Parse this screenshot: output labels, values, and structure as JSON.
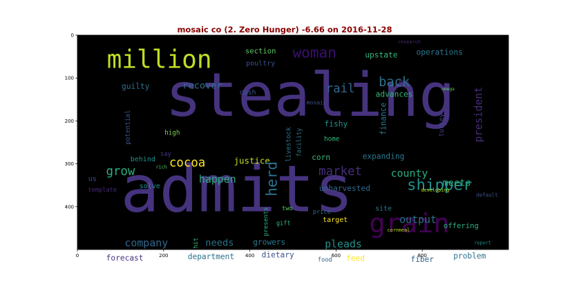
{
  "chart_data": {
    "type": "wordcloud",
    "title": "mosaic co (2. Zero Hunger) -6.66 on 2016-11-28",
    "title_color": "#8b0000",
    "background": "#000000",
    "xlim": [
      0,
      1000
    ],
    "ylim": [
      500,
      0
    ],
    "x_ticks": [
      0,
      200,
      400,
      600,
      800
    ],
    "y_ticks": [
      0,
      100,
      200,
      300,
      400
    ],
    "words": [
      {
        "text": "stealing",
        "x": 540,
        "y": 140,
        "size": 140,
        "color": "#46337e"
      },
      {
        "text": "admits",
        "x": 370,
        "y": 360,
        "size": 150,
        "color": "#46337e"
      },
      {
        "text": "million",
        "x": 190,
        "y": 57,
        "size": 58,
        "color": "#bddf26"
      },
      {
        "text": "grain",
        "x": 770,
        "y": 440,
        "size": 62,
        "color": "#440154"
      },
      {
        "text": "woman",
        "x": 550,
        "y": 40,
        "size": 34,
        "color": "#3b0f70"
      },
      {
        "text": "shipper",
        "x": 840,
        "y": 350,
        "size": 36,
        "color": "#21918c"
      },
      {
        "text": "back",
        "x": 735,
        "y": 110,
        "size": 30,
        "color": "#2c728e"
      },
      {
        "text": "president",
        "x": 930,
        "y": 185,
        "size": 24,
        "color": "#472c7a"
      },
      {
        "text": "rail",
        "x": 610,
        "y": 125,
        "size": 28,
        "color": "#31688e"
      },
      {
        "text": "upstate",
        "x": 705,
        "y": 47,
        "size": 18,
        "color": "#35b779"
      },
      {
        "text": "operations",
        "x": 840,
        "y": 40,
        "size": 18,
        "color": "#2a788e"
      },
      {
        "text": "section",
        "x": 425,
        "y": 38,
        "size": 17,
        "color": "#5ec962"
      },
      {
        "text": "poultry",
        "x": 425,
        "y": 67,
        "size": 16,
        "color": "#3b528b"
      },
      {
        "text": "recover",
        "x": 290,
        "y": 118,
        "size": 22,
        "color": "#2c728e"
      },
      {
        "text": "guilty",
        "x": 135,
        "y": 120,
        "size": 18,
        "color": "#2c728e"
      },
      {
        "text": "cash",
        "x": 395,
        "y": 134,
        "size": 16,
        "color": "#3b528b"
      },
      {
        "text": "mosaic",
        "x": 555,
        "y": 157,
        "size": 13,
        "color": "#3b528b"
      },
      {
        "text": "mos",
        "x": 758,
        "y": 107,
        "size": 13,
        "color": "#443a83"
      },
      {
        "text": "research",
        "x": 770,
        "y": 16,
        "size": 11,
        "color": "#482878"
      },
      {
        "text": "advances",
        "x": 735,
        "y": 138,
        "size": 18,
        "color": "#35b779"
      },
      {
        "text": "omega",
        "x": 860,
        "y": 126,
        "size": 10,
        "color": "#5ec962"
      },
      {
        "text": "finance",
        "x": 710,
        "y": 195,
        "size": 18,
        "color": "#2a788e"
      },
      {
        "text": "fishy",
        "x": 600,
        "y": 207,
        "size": 18,
        "color": "#21918c"
      },
      {
        "text": "turkey",
        "x": 845,
        "y": 210,
        "size": 15,
        "color": "#414487"
      },
      {
        "text": "potential",
        "x": 118,
        "y": 215,
        "size": 15,
        "color": "#3b528b"
      },
      {
        "text": "high",
        "x": 220,
        "y": 228,
        "size": 15,
        "color": "#7ad151"
      },
      {
        "text": "home",
        "x": 590,
        "y": 243,
        "size": 15,
        "color": "#35b779"
      },
      {
        "text": "livestock",
        "x": 490,
        "y": 255,
        "size": 15,
        "color": "#2c728e"
      },
      {
        "text": "facility",
        "x": 515,
        "y": 250,
        "size": 14,
        "color": "#2a788e"
      },
      {
        "text": "say",
        "x": 205,
        "y": 278,
        "size": 14,
        "color": "#443a83"
      },
      {
        "text": "behind",
        "x": 152,
        "y": 290,
        "size": 16,
        "color": "#21918c"
      },
      {
        "text": "rich",
        "x": 195,
        "y": 308,
        "size": 11,
        "color": "#5ec962"
      },
      {
        "text": "cocoa",
        "x": 255,
        "y": 298,
        "size": 28,
        "color": "#fde725"
      },
      {
        "text": "grow",
        "x": 100,
        "y": 318,
        "size": 28,
        "color": "#2ab07f"
      },
      {
        "text": "justice",
        "x": 405,
        "y": 293,
        "size": 20,
        "color": "#bddf26"
      },
      {
        "text": "corn",
        "x": 565,
        "y": 285,
        "size": 18,
        "color": "#35b779"
      },
      {
        "text": "expanding",
        "x": 710,
        "y": 283,
        "size": 18,
        "color": "#2a788e"
      },
      {
        "text": "market",
        "x": 610,
        "y": 318,
        "size": 28,
        "color": "#472c7a"
      },
      {
        "text": "herd",
        "x": 450,
        "y": 335,
        "size": 34,
        "color": "#2c728e"
      },
      {
        "text": "county",
        "x": 770,
        "y": 322,
        "size": 24,
        "color": "#2ab07f"
      },
      {
        "text": "happen",
        "x": 325,
        "y": 336,
        "size": 24,
        "color": "#2ab07f"
      },
      {
        "text": "meets",
        "x": 880,
        "y": 345,
        "size": 22,
        "color": "#2ab07f"
      },
      {
        "text": "us",
        "x": 35,
        "y": 336,
        "size": 16,
        "color": "#3b528b"
      },
      {
        "text": "solve",
        "x": 168,
        "y": 353,
        "size": 16,
        "color": "#21918c"
      },
      {
        "text": "template",
        "x": 58,
        "y": 362,
        "size": 14,
        "color": "#482878"
      },
      {
        "text": "unharvested",
        "x": 620,
        "y": 358,
        "size": 18,
        "color": "#31688e"
      },
      {
        "text": "developing",
        "x": 830,
        "y": 362,
        "size": 11,
        "color": "#b8de29"
      },
      {
        "text": "default",
        "x": 950,
        "y": 373,
        "size": 12,
        "color": "#3b528b"
      },
      {
        "text": "site",
        "x": 710,
        "y": 405,
        "size": 16,
        "color": "#2a788e"
      },
      {
        "text": "two",
        "x": 487,
        "y": 405,
        "size": 14,
        "color": "#5ec962"
      },
      {
        "text": "presents",
        "x": 438,
        "y": 435,
        "size": 14,
        "color": "#2ab07f"
      },
      {
        "text": "price",
        "x": 567,
        "y": 413,
        "size": 14,
        "color": "#31688e"
      },
      {
        "text": "output",
        "x": 790,
        "y": 430,
        "size": 24,
        "color": "#2c728e"
      },
      {
        "text": "target",
        "x": 598,
        "y": 432,
        "size": 16,
        "color": "#fde725"
      },
      {
        "text": "offering",
        "x": 890,
        "y": 445,
        "size": 17,
        "color": "#2ab07f"
      },
      {
        "text": "gift",
        "x": 478,
        "y": 440,
        "size": 14,
        "color": "#35b779"
      },
      {
        "text": "cornmeal",
        "x": 745,
        "y": 455,
        "size": 11,
        "color": "#bddf26"
      },
      {
        "text": "hit",
        "x": 276,
        "y": 485,
        "size": 14,
        "color": "#35b779"
      },
      {
        "text": "company",
        "x": 160,
        "y": 485,
        "size": 24,
        "color": "#31688e"
      },
      {
        "text": "needs",
        "x": 330,
        "y": 485,
        "size": 22,
        "color": "#2c728e"
      },
      {
        "text": "growers",
        "x": 445,
        "y": 483,
        "size": 18,
        "color": "#2a788e"
      },
      {
        "text": "pleads",
        "x": 617,
        "y": 487,
        "size": 24,
        "color": "#21918c"
      },
      {
        "text": "report",
        "x": 940,
        "y": 485,
        "size": 11,
        "color": "#21918c"
      },
      {
        "text": "forecast",
        "x": 110,
        "y": 520,
        "size": 18,
        "color": "#46337e"
      },
      {
        "text": "department",
        "x": 310,
        "y": 517,
        "size": 18,
        "color": "#2c728e"
      },
      {
        "text": "dietary",
        "x": 465,
        "y": 513,
        "size": 18,
        "color": "#3b528b"
      },
      {
        "text": "food",
        "x": 574,
        "y": 525,
        "size": 14,
        "color": "#31688e"
      },
      {
        "text": "feed",
        "x": 645,
        "y": 521,
        "size": 18,
        "color": "#fde725"
      },
      {
        "text": "fiber",
        "x": 800,
        "y": 523,
        "size": 18,
        "color": "#31688e"
      },
      {
        "text": "problem",
        "x": 910,
        "y": 515,
        "size": 18,
        "color": "#2c728e"
      }
    ]
  }
}
